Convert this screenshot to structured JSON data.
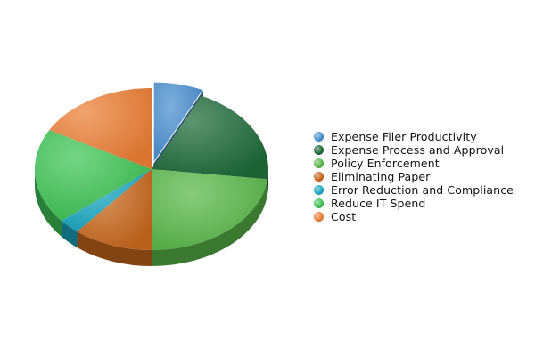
{
  "chart_data": {
    "type": "pie",
    "title": "",
    "legend_position": "right",
    "exploded_slice": "Expense Filer Productivity",
    "slices": [
      {
        "name": "Expense Filer Productivity",
        "value": 7,
        "color": "#4a8fd0"
      },
      {
        "name": "Expense Process and Approval",
        "value": 20,
        "color": "#1e6b3a"
      },
      {
        "name": "Policy Enforcement",
        "value": 23,
        "color": "#5ab84a"
      },
      {
        "name": "Eliminating Paper",
        "value": 11,
        "color": "#c9681e"
      },
      {
        "name": "Error Reduction and Compliance",
        "value": 3,
        "color": "#1aa7c2"
      },
      {
        "name": "Reduce IT Spend",
        "value": 19,
        "color": "#3fc456"
      },
      {
        "name": "Cost",
        "value": 17,
        "color": "#ec7f35"
      }
    ]
  }
}
